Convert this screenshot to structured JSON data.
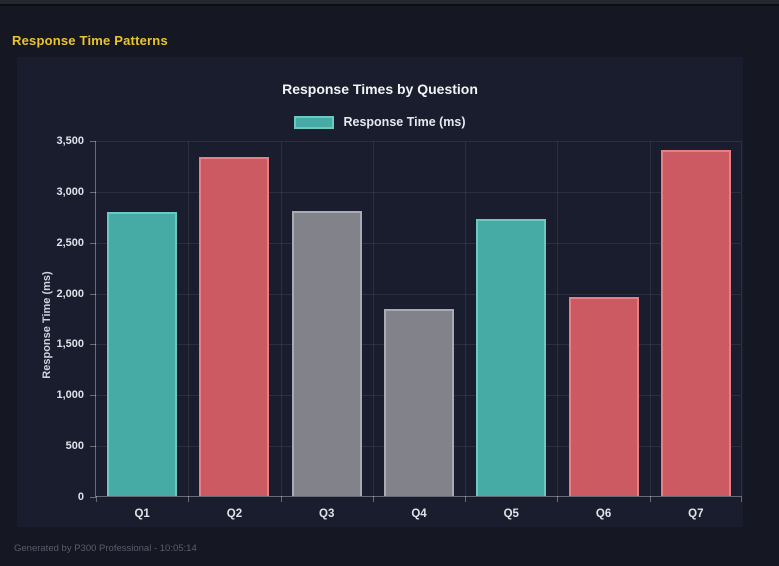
{
  "header": {
    "title": "Response Time Patterns"
  },
  "footer": {
    "text": "Generated by P300 Professional - 10:05:14"
  },
  "colors": {
    "page_background": "#151722",
    "panel_background": "#1a1d2d",
    "header_accent": "#e9c52f",
    "teal": {
      "fill": "#45aba4",
      "border": "#6cc9c1"
    },
    "red": {
      "fill": "#cc5a62",
      "border": "#e57f84"
    },
    "gray": {
      "fill": "#82828b",
      "border": "#a9aab2"
    }
  },
  "chart_data": {
    "type": "bar",
    "title": "Response Times by Question",
    "legend": [
      {
        "label": "Response Time (ms)",
        "color_key": "teal"
      }
    ],
    "legend_position": "top",
    "categories": [
      "Q1",
      "Q2",
      "Q3",
      "Q4",
      "Q5",
      "Q6",
      "Q7"
    ],
    "values": [
      2790,
      3330,
      2800,
      1840,
      2720,
      1960,
      3400
    ],
    "bar_color_keys": [
      "teal",
      "red",
      "gray",
      "gray",
      "teal",
      "red",
      "red"
    ],
    "xlabel": "",
    "ylabel": "Response Time (ms)",
    "ylim": [
      0,
      3500
    ],
    "ytick_step": 500,
    "grid": true
  }
}
